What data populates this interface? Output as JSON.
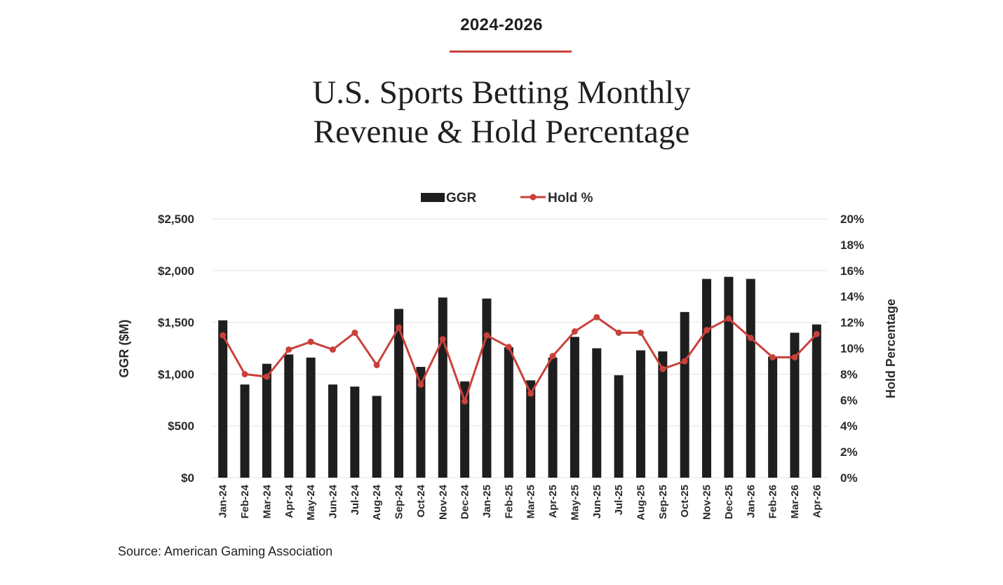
{
  "header": {
    "kicker": "2024-2026",
    "title_line1": "U.S. Sports Betting Monthly",
    "title_line2": "Revenue & Hold Percentage"
  },
  "source": "Source: American Gaming Association",
  "colors": {
    "bar": "#1e1e1e",
    "line": "#c9413b",
    "grid": "#e3e3e3",
    "rule": "#c9413b"
  },
  "chart_data": {
    "type": "bar",
    "categories": [
      "Jan-24",
      "Feb-24",
      "Mar-24",
      "Apr-24",
      "May-24",
      "Jun-24",
      "Jul-24",
      "Aug-24",
      "Sep-24",
      "Oct-24",
      "Nov-24",
      "Dec-24",
      "Jan-25",
      "Feb-25",
      "Mar-25",
      "Apr-25",
      "May-25",
      "Jun-25",
      "Jul-25",
      "Aug-25",
      "Sep-25",
      "Oct-25",
      "Nov-25",
      "Dec-25",
      "Jan-26",
      "Feb-26",
      "Mar-26",
      "Apr-26"
    ],
    "series": [
      {
        "name": "GGR",
        "type": "bar",
        "axis": "left",
        "values": [
          1520,
          900,
          1100,
          1190,
          1160,
          900,
          880,
          790,
          1630,
          1070,
          1740,
          930,
          1730,
          1260,
          940,
          1160,
          1360,
          1250,
          990,
          1230,
          1220,
          1600,
          1920,
          1940,
          1920,
          1170,
          1400,
          1480
        ]
      },
      {
        "name": "Hold %",
        "type": "line",
        "axis": "right",
        "values": [
          11.0,
          8.0,
          7.8,
          9.9,
          10.5,
          9.9,
          11.2,
          8.7,
          11.6,
          7.2,
          10.7,
          5.9,
          11.0,
          10.1,
          6.5,
          9.4,
          11.3,
          12.4,
          11.2,
          11.2,
          8.4,
          9.0,
          11.4,
          12.3,
          10.8,
          9.3,
          9.3,
          11.1
        ]
      }
    ],
    "ylabel": "GGR ($M)",
    "y2label": "Hold Percentage",
    "ylim": [
      0,
      2500
    ],
    "y2lim": [
      0,
      20
    ],
    "yticks": [
      "$0",
      "$500",
      "$1,000",
      "$1,500",
      "$2,000",
      "$2,500"
    ],
    "y2ticks": [
      "0%",
      "2%",
      "4%",
      "6%",
      "8%",
      "10%",
      "12%",
      "14%",
      "16%",
      "18%",
      "20%"
    ],
    "grid": true,
    "legend_position": "top-center"
  }
}
